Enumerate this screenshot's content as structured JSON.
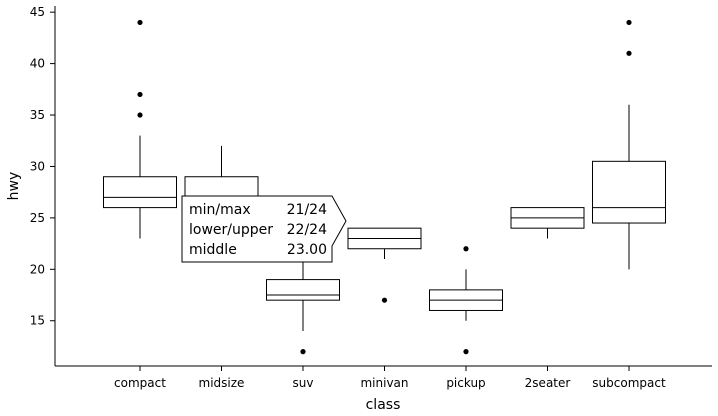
{
  "chart_data": {
    "type": "boxplot",
    "xlabel": "class",
    "ylabel": "hwy",
    "ylim": [
      10.6,
      45.6
    ],
    "yticks": [
      15,
      20,
      25,
      30,
      35,
      40,
      45
    ],
    "categories": [
      "compact",
      "midsize",
      "suv",
      "minivan",
      "pickup",
      "2seater",
      "subcompact"
    ],
    "boxes": [
      {
        "category": "compact",
        "whisker_low": 23,
        "q1": 26,
        "median": 27,
        "q3": 29,
        "whisker_high": 33,
        "outliers": [
          35,
          37,
          44
        ]
      },
      {
        "category": "midsize",
        "whisker_low": 23,
        "q1": 26,
        "median": 27,
        "q3": 29,
        "whisker_high": 32,
        "outliers": []
      },
      {
        "category": "suv",
        "whisker_low": 14,
        "q1": 17,
        "median": 17.5,
        "q3": 19,
        "whisker_high": 22,
        "outliers": [
          12
        ]
      },
      {
        "category": "minivan",
        "whisker_low": 21,
        "q1": 22,
        "median": 23,
        "q3": 24,
        "whisker_high": 24,
        "outliers": [
          17
        ]
      },
      {
        "category": "pickup",
        "whisker_low": 15,
        "q1": 16,
        "median": 17,
        "q3": 18,
        "whisker_high": 20,
        "outliers": [
          12,
          22
        ]
      },
      {
        "category": "2seater",
        "whisker_low": 23,
        "q1": 24,
        "median": 25,
        "q3": 26,
        "whisker_high": 26,
        "outliers": []
      },
      {
        "category": "subcompact",
        "whisker_low": 20,
        "q1": 24.5,
        "median": 26,
        "q3": 30.5,
        "whisker_high": 36,
        "outliers": [
          41,
          44
        ]
      }
    ],
    "tooltip": {
      "category": "minivan",
      "rows": [
        {
          "label": "min/max",
          "value": "21/24"
        },
        {
          "label": "lower/upper",
          "value": "22/24"
        },
        {
          "label": "middle",
          "value": "23.00"
        }
      ]
    }
  }
}
